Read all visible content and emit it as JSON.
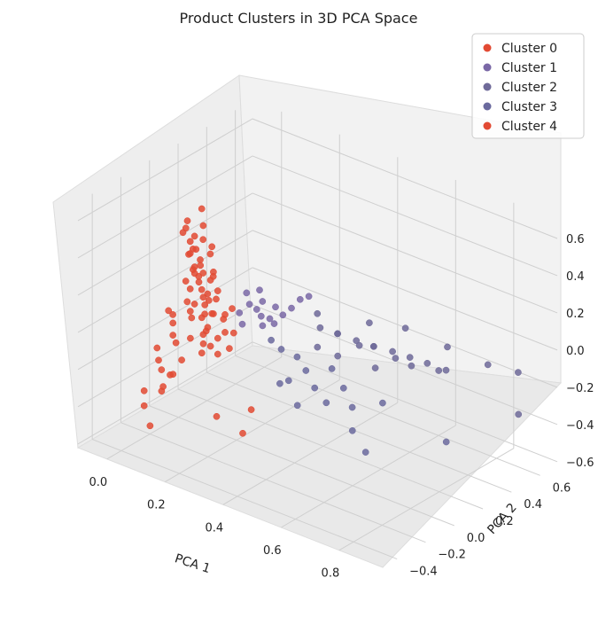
{
  "chart_data": {
    "type": "scatter",
    "projection": "3d",
    "title": "Product Clusters in 3D PCA Space",
    "xlabel": "PCA 1",
    "ylabel": "PCA 2",
    "zlabel": "",
    "xlim": [
      -0.1,
      0.95
    ],
    "ylim": [
      -0.5,
      0.72
    ],
    "zlim": [
      -0.62,
      0.7
    ],
    "x_ticks": [
      "0.0",
      "0.2",
      "0.4",
      "0.6",
      "0.8"
    ],
    "y_ticks": [
      "−0.4",
      "−0.2",
      "0.0",
      "0.2",
      "0.4",
      "0.6"
    ],
    "z_ticks": [
      "−0.6",
      "−0.4",
      "−0.2",
      "0.0",
      "0.2",
      "0.4",
      "0.6"
    ],
    "grid": true,
    "legend_position": "top-right",
    "series": [
      {
        "name": "Cluster 0",
        "color": "#e24a33",
        "points": [
          [
            0.05,
            -0.05,
            0.45
          ],
          [
            0.06,
            -0.04,
            0.38
          ],
          [
            0.07,
            -0.06,
            0.33
          ],
          [
            0.05,
            -0.03,
            0.3
          ],
          [
            0.08,
            -0.05,
            0.26
          ],
          [
            0.06,
            -0.02,
            0.22
          ],
          [
            0.09,
            -0.04,
            0.18
          ],
          [
            0.07,
            -0.06,
            0.14
          ],
          [
            0.1,
            -0.03,
            0.1
          ],
          [
            0.08,
            -0.05,
            0.06
          ],
          [
            0.11,
            -0.04,
            0.02
          ],
          [
            0.09,
            -0.02,
            -0.02
          ],
          [
            0.12,
            -0.05,
            -0.06
          ],
          [
            0.1,
            -0.03,
            -0.1
          ],
          [
            0.13,
            -0.04,
            -0.14
          ],
          [
            0.11,
            -0.06,
            -0.18
          ],
          [
            0.07,
            -0.03,
            0.41
          ],
          [
            0.08,
            -0.04,
            0.35
          ],
          [
            0.1,
            -0.05,
            0.28
          ],
          [
            0.12,
            -0.02,
            0.2
          ],
          [
            0.06,
            -0.06,
            0.5
          ],
          [
            0.04,
            -0.05,
            0.42
          ],
          [
            0.09,
            -0.07,
            0.24
          ],
          [
            0.11,
            -0.02,
            0.12
          ],
          [
            0.14,
            -0.04,
            0.04
          ],
          [
            0.13,
            -0.06,
            -0.03
          ],
          [
            0.15,
            -0.03,
            -0.09
          ],
          [
            0.12,
            -0.07,
            -0.12
          ],
          [
            0.02,
            -0.08,
            -0.02
          ],
          [
            0.03,
            -0.1,
            -0.05
          ],
          [
            0.04,
            -0.12,
            -0.1
          ],
          [
            0.01,
            -0.09,
            0.0
          ],
          [
            0.0,
            -0.15,
            -0.18
          ],
          [
            0.02,
            -0.18,
            -0.22
          ],
          [
            0.04,
            -0.2,
            -0.25
          ],
          [
            0.06,
            -0.16,
            -0.28
          ],
          [
            0.08,
            -0.14,
            -0.2
          ],
          [
            0.03,
            -0.12,
            -0.32
          ],
          [
            0.05,
            -0.22,
            -0.35
          ],
          [
            0.07,
            -0.25,
            -0.3
          ],
          [
            -0.02,
            -0.2,
            -0.4
          ],
          [
            0.0,
            -0.24,
            -0.45
          ],
          [
            0.16,
            -0.05,
            -0.16
          ],
          [
            0.17,
            -0.02,
            -0.05
          ],
          [
            0.18,
            -0.04,
            0.06
          ],
          [
            0.14,
            -0.01,
            0.15
          ],
          [
            0.19,
            -0.03,
            -0.12
          ],
          [
            0.21,
            -0.04,
            -0.02
          ],
          [
            0.13,
            -0.08,
            0.1
          ],
          [
            0.09,
            -0.1,
            0.05
          ],
          [
            0.1,
            -0.12,
            -0.08
          ],
          [
            0.06,
            -0.14,
            -0.12
          ],
          [
            0.3,
            -0.1,
            -0.35
          ],
          [
            0.32,
            -0.2,
            -0.42
          ],
          [
            0.05,
            -0.3,
            -0.5
          ],
          [
            0.22,
            -0.18,
            -0.4
          ],
          [
            0.08,
            0.0,
            0.55
          ],
          [
            0.09,
            -0.01,
            0.47
          ],
          [
            0.11,
            0.01,
            0.36
          ],
          [
            0.13,
            -0.02,
            0.25
          ]
        ]
      },
      {
        "name": "Cluster 1",
        "color": "#7a68a6",
        "points": [
          [
            0.22,
            0.05,
            0.1
          ],
          [
            0.24,
            0.06,
            0.08
          ],
          [
            0.26,
            0.05,
            0.06
          ],
          [
            0.28,
            0.07,
            0.05
          ],
          [
            0.25,
            0.08,
            0.12
          ],
          [
            0.3,
            0.06,
            0.04
          ],
          [
            0.27,
            0.04,
            0.02
          ],
          [
            0.32,
            0.08,
            0.09
          ],
          [
            0.2,
            0.07,
            0.14
          ],
          [
            0.23,
            0.1,
            0.16
          ],
          [
            0.29,
            0.09,
            0.11
          ],
          [
            0.34,
            0.1,
            0.13
          ],
          [
            0.36,
            0.12,
            0.18
          ],
          [
            0.38,
            0.14,
            0.2
          ],
          [
            0.21,
            0.02,
            0.0
          ],
          [
            0.19,
            0.04,
            0.04
          ]
        ]
      },
      {
        "name": "Cluster 2",
        "color": "#6f6a99",
        "points": [
          [
            0.35,
            0.28,
            -0.05
          ],
          [
            0.4,
            0.3,
            -0.06
          ],
          [
            0.45,
            0.33,
            -0.08
          ],
          [
            0.5,
            0.35,
            -0.09
          ],
          [
            0.55,
            0.38,
            -0.1
          ],
          [
            0.6,
            0.4,
            -0.11
          ],
          [
            0.65,
            0.42,
            -0.12
          ],
          [
            0.42,
            0.26,
            -0.03
          ],
          [
            0.48,
            0.29,
            -0.07
          ],
          [
            0.52,
            0.31,
            -0.06
          ],
          [
            0.58,
            0.34,
            -0.1
          ],
          [
            0.62,
            0.37,
            -0.13
          ],
          [
            0.7,
            0.45,
            -0.14
          ],
          [
            0.38,
            0.2,
            -0.1
          ],
          [
            0.44,
            0.22,
            -0.12
          ],
          [
            0.36,
            0.24,
            0.05
          ],
          [
            0.48,
            0.36,
            0.02
          ],
          [
            0.56,
            0.45,
            0.0
          ],
          [
            0.68,
            0.5,
            -0.05
          ],
          [
            0.85,
            0.65,
            -0.15
          ],
          [
            0.9,
            0.55,
            -0.3
          ],
          [
            0.78,
            0.58,
            -0.12
          ],
          [
            0.66,
            0.48,
            -0.18
          ],
          [
            0.54,
            0.28,
            -0.15
          ]
        ]
      },
      {
        "name": "Cluster 3",
        "color": "#6b6a9e",
        "points": [
          [
            0.28,
            0.15,
            -0.15
          ],
          [
            0.32,
            0.18,
            -0.18
          ],
          [
            0.36,
            0.16,
            -0.22
          ],
          [
            0.4,
            0.14,
            -0.28
          ],
          [
            0.3,
            0.1,
            -0.3
          ],
          [
            0.34,
            0.08,
            -0.25
          ],
          [
            0.45,
            0.12,
            -0.32
          ],
          [
            0.5,
            0.2,
            -0.35
          ],
          [
            0.38,
            0.06,
            -0.35
          ],
          [
            0.55,
            0.1,
            -0.4
          ],
          [
            0.62,
            0.05,
            -0.45
          ],
          [
            0.42,
            0.22,
            -0.2
          ],
          [
            0.26,
            0.12,
            -0.1
          ],
          [
            0.48,
            0.18,
            -0.25
          ],
          [
            0.58,
            0.25,
            -0.3
          ],
          [
            0.75,
            0.35,
            -0.45
          ]
        ]
      },
      {
        "name": "Cluster 4",
        "color": "#e24a33",
        "points": [
          [
            0.04,
            0.02,
            0.3
          ],
          [
            0.06,
            0.03,
            0.25
          ],
          [
            0.08,
            0.01,
            0.2
          ],
          [
            0.05,
            0.04,
            0.15
          ],
          [
            0.07,
            0.02,
            0.1
          ],
          [
            0.09,
            0.03,
            0.05
          ],
          [
            0.11,
            0.01,
            0.0
          ],
          [
            0.06,
            0.05,
            0.35
          ],
          [
            0.1,
            0.04,
            0.18
          ],
          [
            0.12,
            0.02,
            0.08
          ],
          [
            0.03,
            0.0,
            0.02
          ],
          [
            0.05,
            -0.01,
            -0.05
          ],
          [
            0.14,
            0.03,
            -0.02
          ],
          [
            0.16,
            0.05,
            0.04
          ],
          [
            0.02,
            0.01,
            0.12
          ],
          [
            0.08,
            0.06,
            0.28
          ]
        ]
      }
    ]
  }
}
